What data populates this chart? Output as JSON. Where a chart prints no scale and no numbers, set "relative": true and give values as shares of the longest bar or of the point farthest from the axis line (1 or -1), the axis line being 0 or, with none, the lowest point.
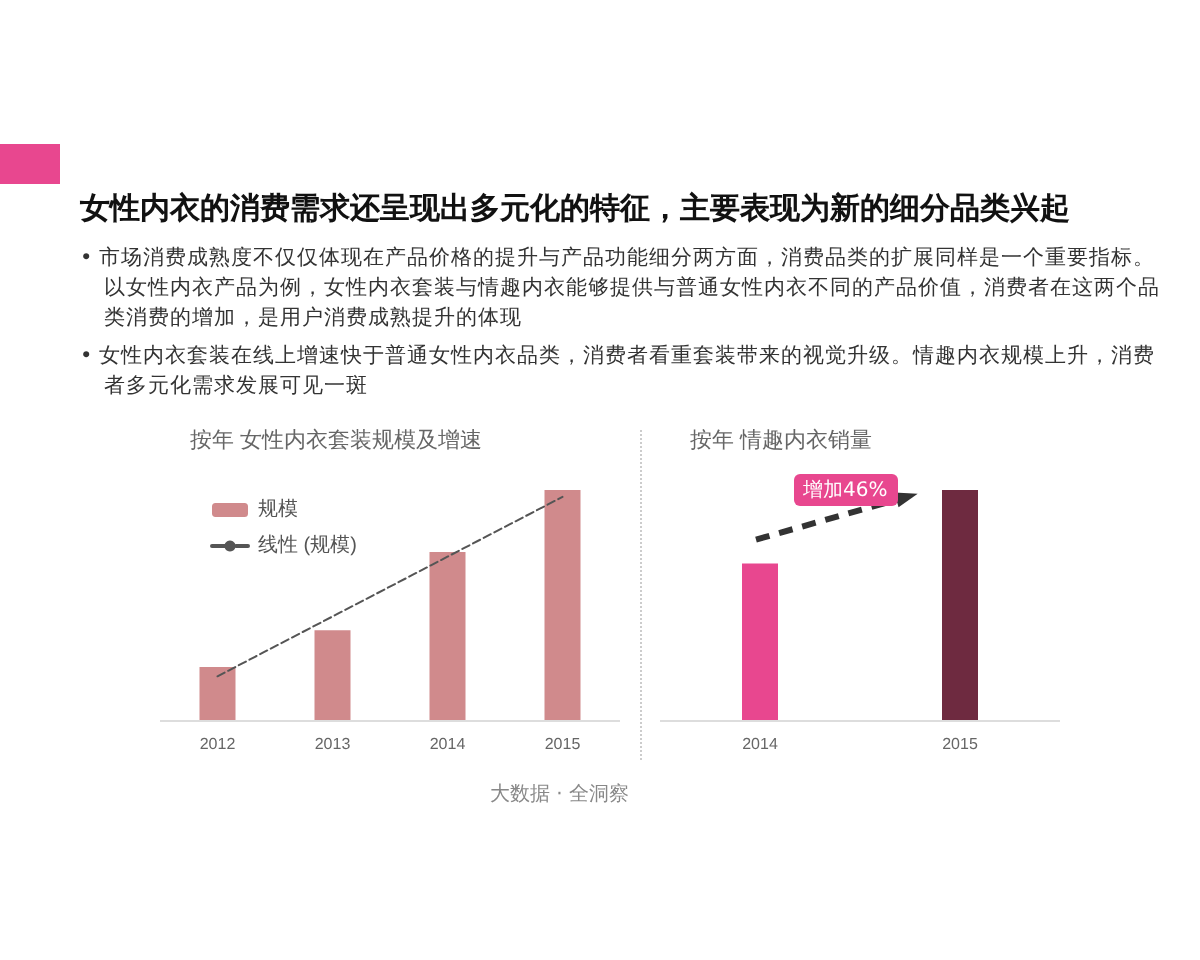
{
  "chart_data": [
    {
      "type": "other",
      "title": "女性内衣的消费需求还呈现出多元化的特征，主要表现为新的细分品类兴起",
      "annotations": [
        "• 市场消费成熟度不仅仅体现在产品价格的提升与产品功能细分两方面，消费品类的扩展同样是一个重要指标。以女性内衣产品为例，女性内衣套装与情趣内衣能够提供与普通女性内衣不同的产品价值，消费者在这两个品类消费的增加，是用户消费成熟提升的体现",
        "• 女性内衣套装在线上增速快于普通女性内衣品类，消费者看重套装带来的视觉升级。情趣内衣规模上升，消费者多元化需求发展可见一斑"
      ]
    },
    {
      "type": "bar",
      "title": "按年 女性内衣套装规模及增速",
      "categories": [
        "2012",
        "2013",
        "2014",
        "2015"
      ],
      "relative": true,
      "legend": "top left",
      "annotations": [
        "大数据 · 全洞察"
      ],
      "series": [
        {
          "name": "规模",
          "color": "#d08a8c",
          "values": [
            0.23,
            0.39,
            0.73,
            1
          ]
        },
        {
          "name": "线性 (规模)",
          "type": "line",
          "color": "#555555",
          "line_style": "dashed",
          "marker": "none",
          "values": [
            0.19,
            0.45,
            0.71,
            0.97
          ]
        }
      ]
    },
    {
      "type": "bar",
      "title": "按年 情趣内衣销量",
      "categories": [
        "2014",
        "2015"
      ],
      "relative": true,
      "values": [
        0.68,
        1
      ],
      "colors": [
        "#e8478f",
        "#6e2a40"
      ],
      "annotations": [
        "增加46%"
      ]
    }
  ]
}
